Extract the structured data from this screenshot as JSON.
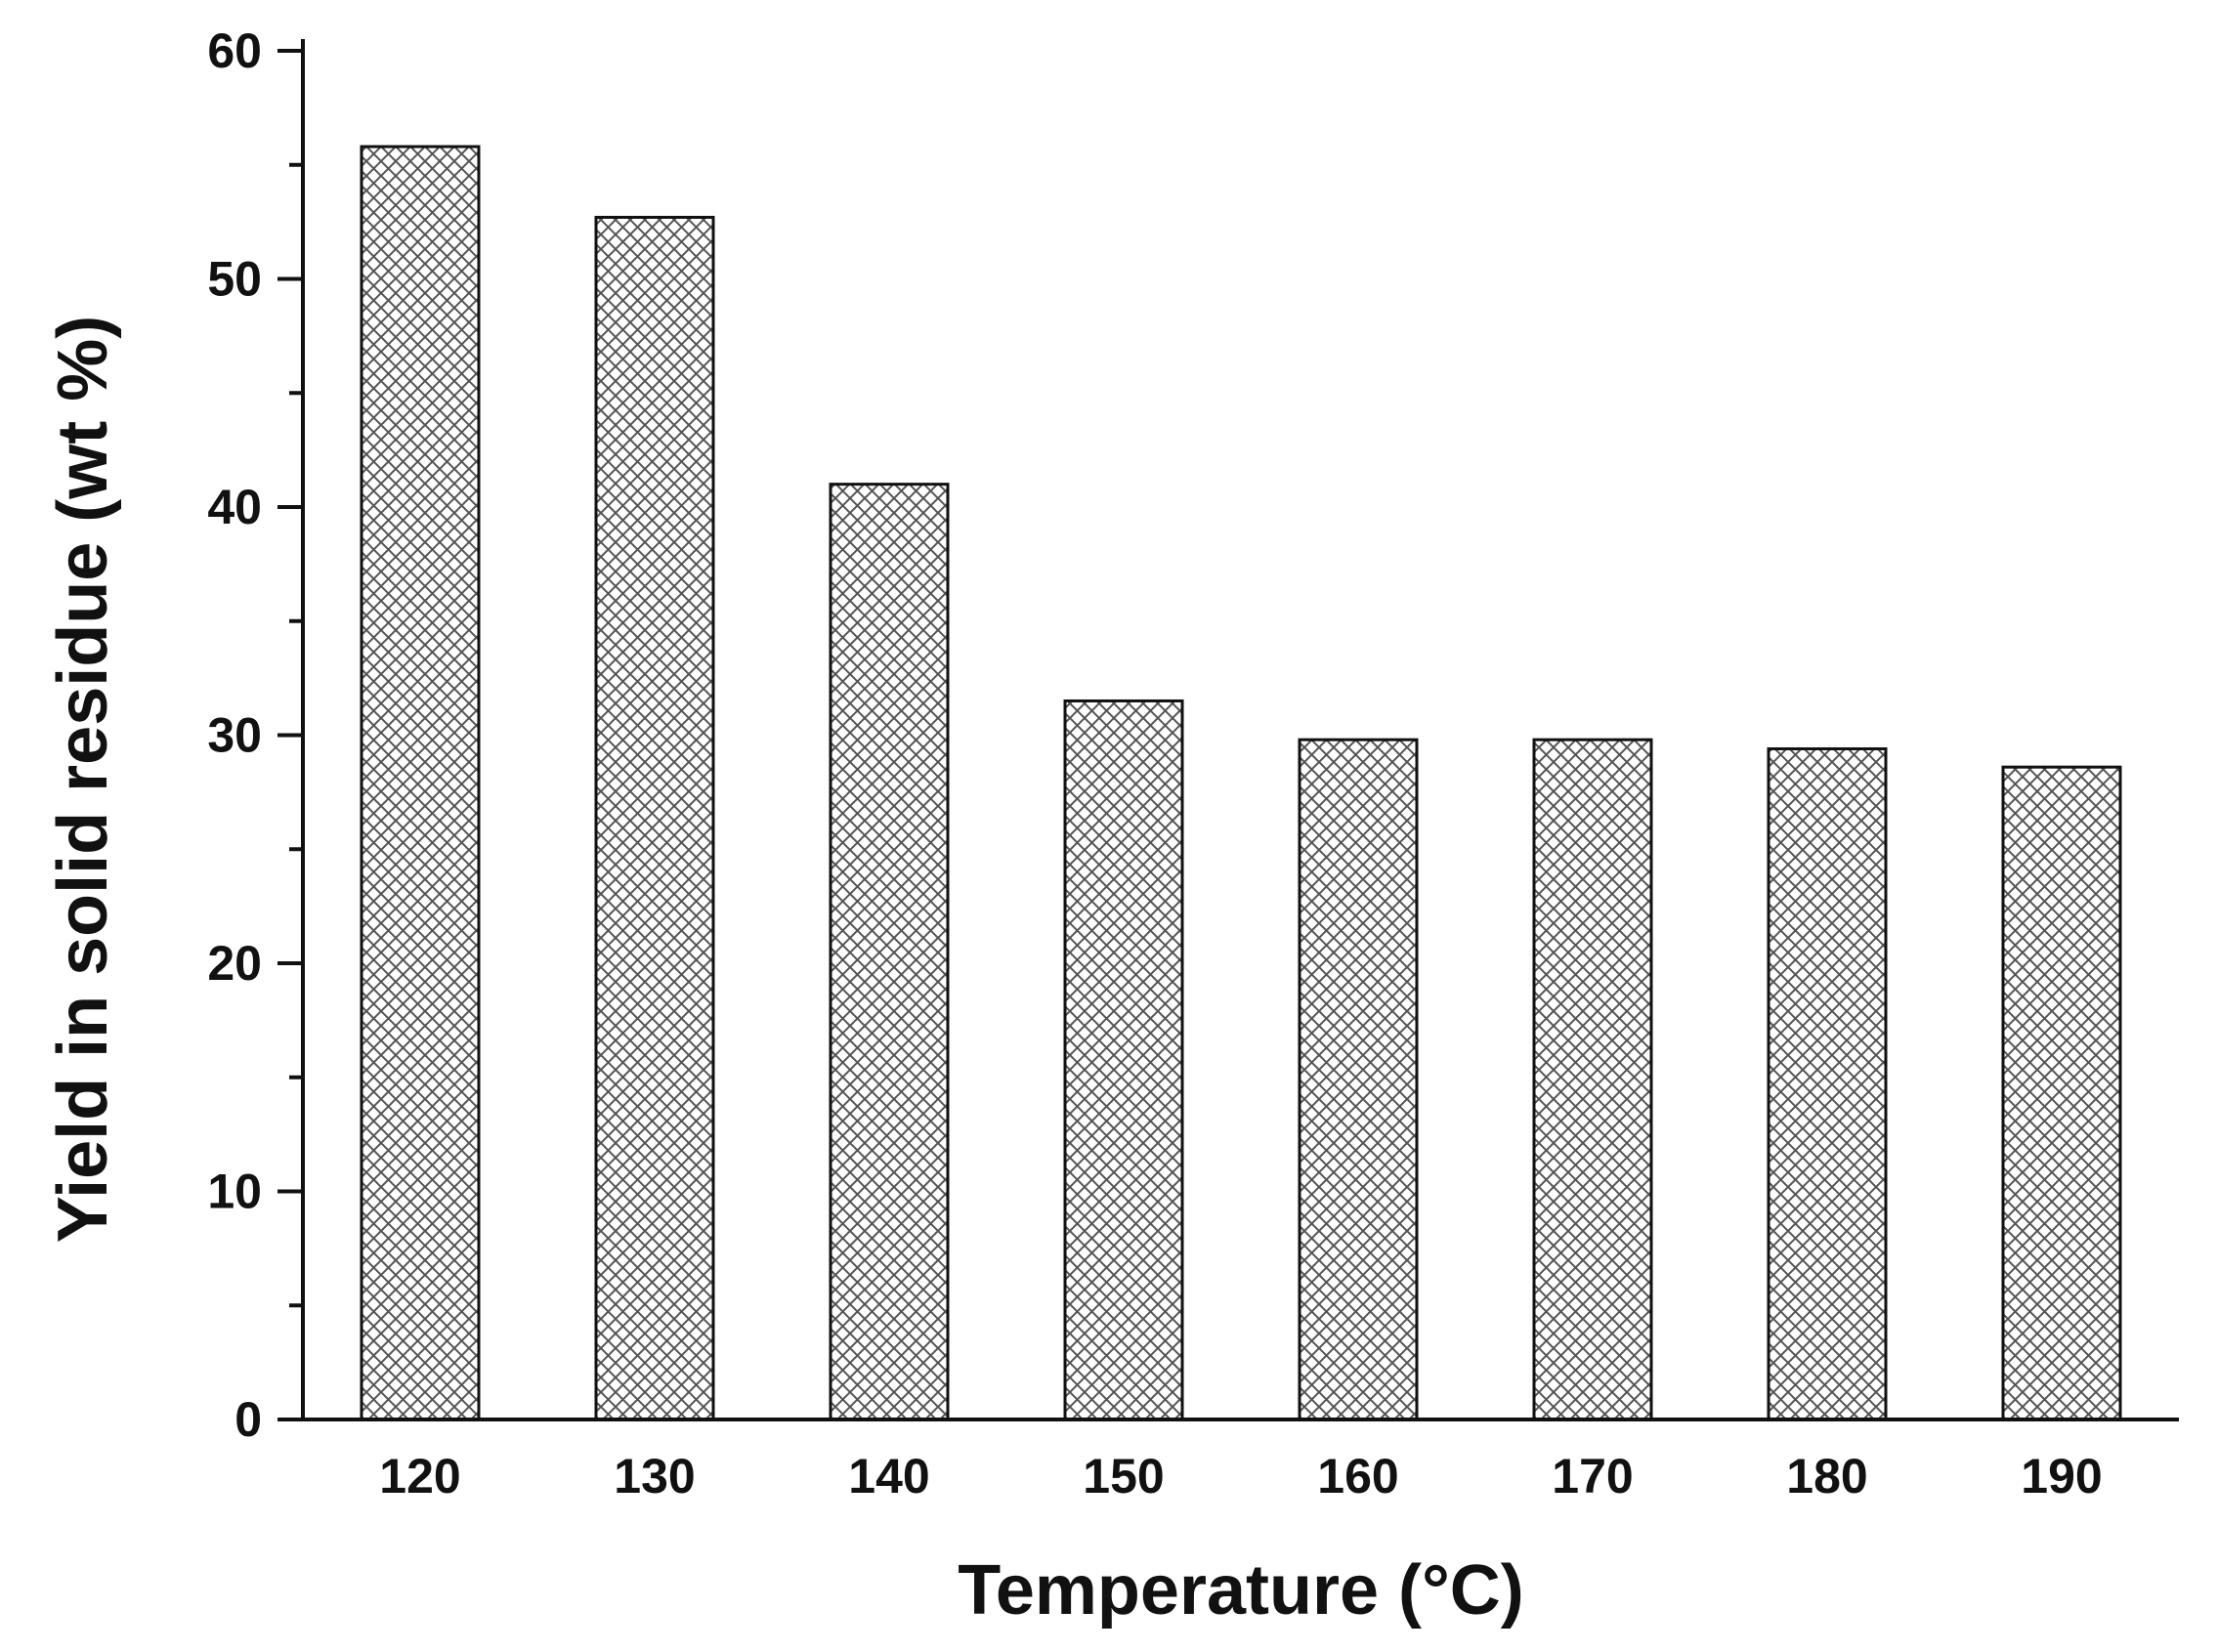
{
  "chart_data": {
    "type": "bar",
    "title": "",
    "xlabel": "Temperature (°C)",
    "ylabel": "Yield in solid residue (wt %)",
    "categories": [
      "120",
      "130",
      "140",
      "150",
      "160",
      "170",
      "180",
      "190"
    ],
    "values": [
      55.8,
      52.7,
      41.0,
      31.5,
      29.8,
      29.8,
      29.4,
      28.6
    ],
    "ylim": [
      0,
      60
    ],
    "yticks": [
      "0",
      "10",
      "20",
      "30",
      "40",
      "50",
      "60"
    ],
    "ytick_values": [
      0,
      10,
      20,
      30,
      40,
      50,
      60
    ],
    "minor_ytick_step": 5,
    "grid": false,
    "legend": "none",
    "bar_fill": "crosshatch",
    "colors": {
      "bar_fill": "#ffffff",
      "hatch": "#555555",
      "bar_edge": "#111111",
      "axis": "#111111",
      "text": "#111111"
    }
  }
}
